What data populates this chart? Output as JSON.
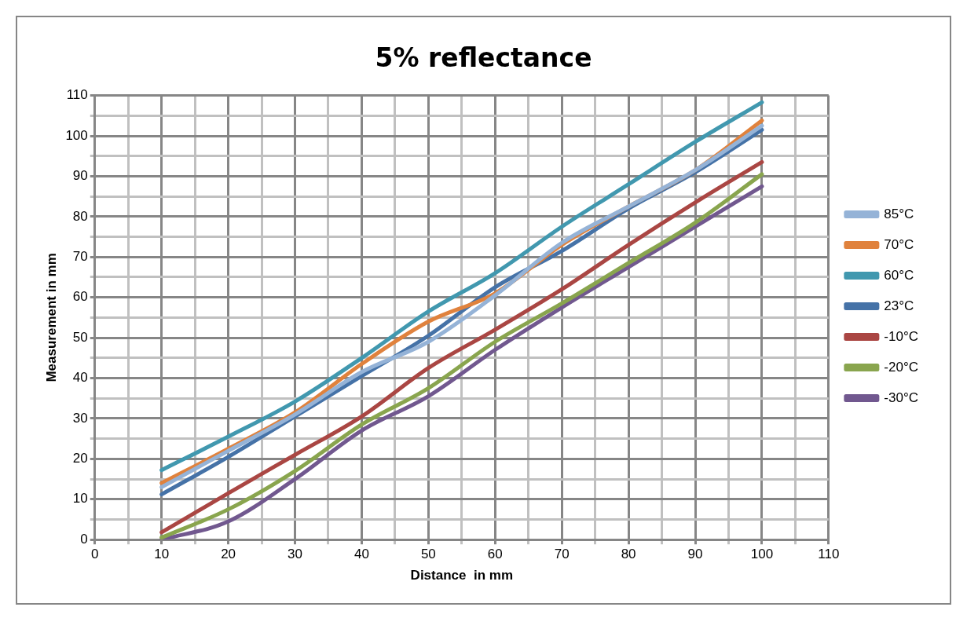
{
  "chart_data": {
    "type": "line",
    "title": "5% reflectance",
    "xlabel": "Distance  in mm",
    "ylabel": "Measurement in mm",
    "x": [
      10,
      20,
      30,
      40,
      50,
      60,
      70,
      80,
      90,
      100
    ],
    "series": [
      {
        "name": "85°C",
        "color": "#95b3d7",
        "values": [
          13,
          22,
          31,
          41.5,
          49,
          60.5,
          73.5,
          82.5,
          91.5,
          102.5
        ]
      },
      {
        "name": "70°C",
        "color": "#e0823d",
        "values": [
          14,
          22.5,
          31.5,
          43.5,
          54,
          61,
          73,
          82.5,
          91.5,
          103.8
        ]
      },
      {
        "name": "60°C",
        "color": "#4198af",
        "values": [
          17.2,
          25.5,
          34.2,
          45,
          56.5,
          66,
          77.5,
          88,
          98.5,
          108.3
        ]
      },
      {
        "name": "23°C",
        "color": "#4572a7",
        "values": [
          11.2,
          20.5,
          30.5,
          40.5,
          50.5,
          62.5,
          71.5,
          82,
          91,
          101.5
        ]
      },
      {
        "name": "-10°C",
        "color": "#aa4643",
        "values": [
          1.8,
          11.5,
          21,
          30.5,
          42.5,
          52,
          62,
          73,
          83.5,
          93.5
        ]
      },
      {
        "name": "-20°C",
        "color": "#89a54e",
        "values": [
          0.5,
          7.5,
          17,
          28.5,
          37.5,
          49,
          58.5,
          68.5,
          78.5,
          90.5
        ]
      },
      {
        "name": "-30°C",
        "color": "#71588f",
        "values": [
          0,
          4.5,
          15,
          27,
          35.5,
          47,
          57.5,
          67.5,
          77.5,
          87.5
        ]
      }
    ],
    "xlim": [
      0,
      110
    ],
    "ylim": [
      0,
      110
    ],
    "xticks": [
      0,
      {
        "value": 5,
        "label": null
      },
      10,
      {
        "value": 15,
        "label": null
      },
      20,
      {
        "value": 25,
        "label": null
      },
      30,
      {
        "value": 35,
        "label": null
      },
      40,
      {
        "value": 45,
        "label": null
      },
      50,
      {
        "value": 55,
        "label": null
      },
      60,
      {
        "value": 65,
        "label": null
      },
      70,
      {
        "value": 75,
        "label": null
      },
      80,
      {
        "value": 85,
        "label": null
      },
      90,
      {
        "value": 95,
        "label": null
      },
      100,
      {
        "value": 105,
        "label": null
      },
      110
    ],
    "yticks": [
      0,
      {
        "value": 5,
        "label": null
      },
      10,
      {
        "value": 15,
        "label": null
      },
      20,
      {
        "value": 25,
        "label": null
      },
      30,
      {
        "value": 35,
        "label": null
      },
      40,
      {
        "value": 45,
        "label": null
      },
      50,
      {
        "value": 55,
        "label": null
      },
      60,
      {
        "value": 65,
        "label": null
      },
      70,
      {
        "value": 75,
        "label": null
      },
      80,
      {
        "value": 85,
        "label": null
      },
      90,
      {
        "value": 95,
        "label": null
      },
      100,
      {
        "value": 105,
        "label": null
      },
      110
    ],
    "grid": true,
    "legend": "right",
    "marker": "none",
    "line_style": "solid"
  }
}
